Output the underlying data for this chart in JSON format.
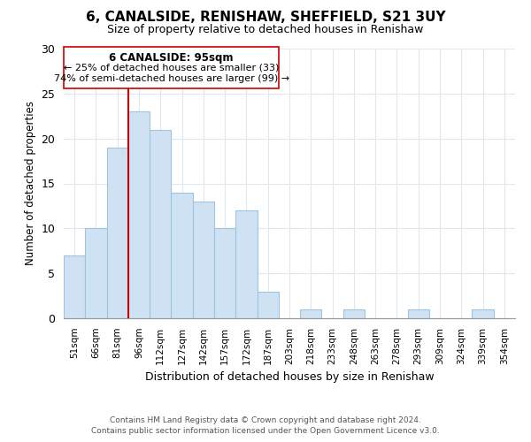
{
  "title": "6, CANALSIDE, RENISHAW, SHEFFIELD, S21 3UY",
  "subtitle": "Size of property relative to detached houses in Renishaw",
  "xlabel": "Distribution of detached houses by size in Renishaw",
  "ylabel": "Number of detached properties",
  "bar_labels": [
    "51sqm",
    "66sqm",
    "81sqm",
    "96sqm",
    "112sqm",
    "127sqm",
    "142sqm",
    "157sqm",
    "172sqm",
    "187sqm",
    "203sqm",
    "218sqm",
    "233sqm",
    "248sqm",
    "263sqm",
    "278sqm",
    "293sqm",
    "309sqm",
    "324sqm",
    "339sqm",
    "354sqm"
  ],
  "bar_values": [
    7,
    10,
    19,
    23,
    21,
    14,
    13,
    10,
    12,
    3,
    0,
    1,
    0,
    1,
    0,
    0,
    1,
    0,
    0,
    1,
    0
  ],
  "bar_color": "#cfe2f3",
  "bar_edge_color": "#9ec4e0",
  "ylim": [
    0,
    30
  ],
  "yticks": [
    0,
    5,
    10,
    15,
    20,
    25,
    30
  ],
  "vline_color": "#cc0000",
  "annotation_title": "6 CANALSIDE: 95sqm",
  "annotation_line1": "← 25% of detached houses are smaller (33)",
  "annotation_line2": "74% of semi-detached houses are larger (99) →",
  "annotation_box_edge": "#cc0000",
  "footer_line1": "Contains HM Land Registry data © Crown copyright and database right 2024.",
  "footer_line2": "Contains public sector information licensed under the Open Government Licence v3.0.",
  "background_color": "#ffffff",
  "grid_color": "#dde8f0"
}
